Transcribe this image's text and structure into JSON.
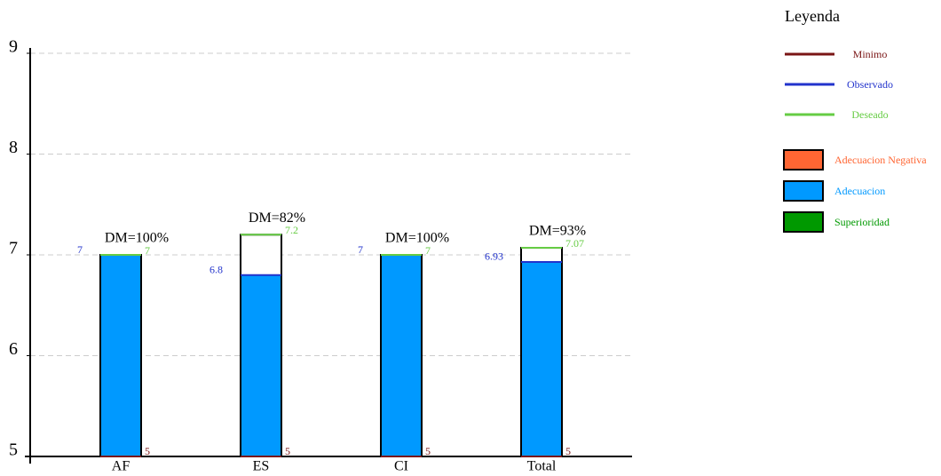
{
  "chart_data": {
    "type": "bar",
    "categories": [
      "AF",
      "ES",
      "CI",
      "Total"
    ],
    "series": [
      {
        "name": "Minimo",
        "color": "#7a1515",
        "values": [
          5,
          5,
          5,
          5
        ]
      },
      {
        "name": "Observado",
        "color": "#2233cc",
        "values": [
          7,
          6.8,
          7,
          6.93
        ]
      },
      {
        "name": "Deseado",
        "color": "#66cc44",
        "values": [
          7,
          7.2,
          7,
          7.07
        ]
      }
    ],
    "dm_labels": [
      "DM=100%",
      "DM=82%",
      "DM=100%",
      "DM=93%"
    ],
    "fills": [
      {
        "name": "Adecuacion Negativa",
        "color": "#ff6633"
      },
      {
        "name": "Adecuacion",
        "color": "#0099ff"
      },
      {
        "name": "Superioridad",
        "color": "#009900"
      }
    ],
    "legend_title": "Leyenda",
    "ylim": [
      5,
      9
    ],
    "yticks": [
      5,
      6,
      7,
      8,
      9
    ],
    "grid": true
  }
}
